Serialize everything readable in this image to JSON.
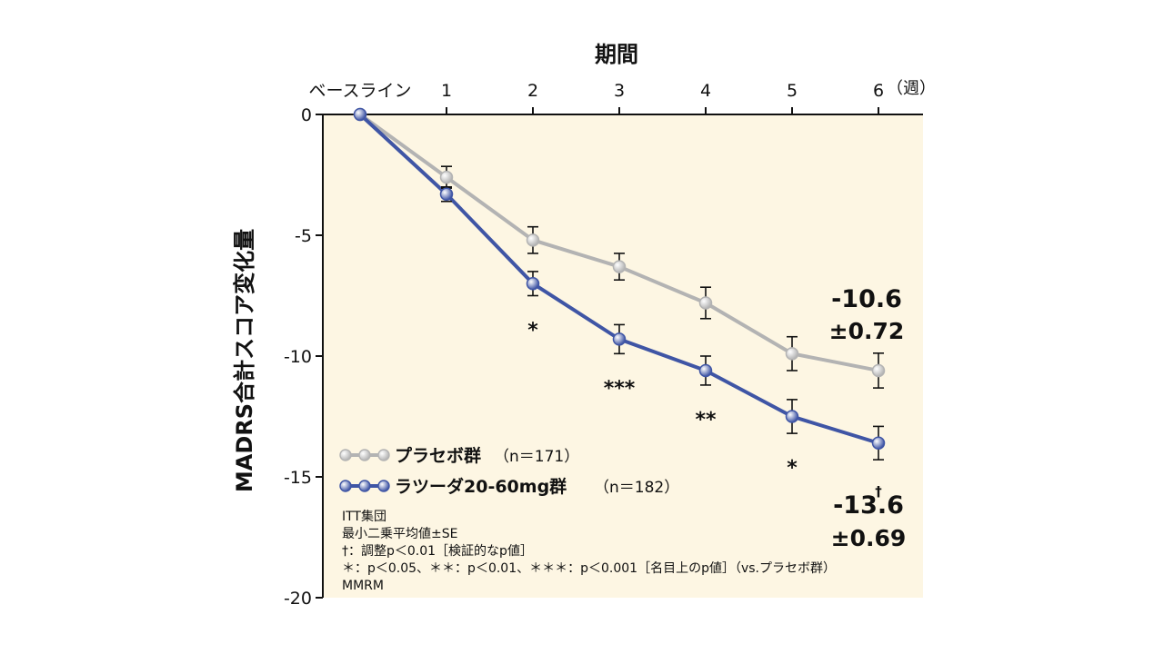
{
  "chart_data": {
    "type": "line",
    "title": "期間",
    "xlabel": "期間",
    "ylabel": "MADRS合計スコア変化量",
    "x_unit": "（週）",
    "categories": [
      "ベースライン",
      "1",
      "2",
      "3",
      "4",
      "5",
      "6"
    ],
    "ylim": [
      -20,
      0
    ],
    "yticks": [
      0,
      -5,
      -10,
      -15,
      -20
    ],
    "ytick_labels": [
      "0",
      "-5",
      "-10",
      "-15",
      "-20"
    ],
    "series": [
      {
        "name": "プラセボ群",
        "n_label": "（n＝171）",
        "color": "#b3b3b3",
        "values": [
          0,
          -2.6,
          -5.2,
          -6.3,
          -7.8,
          -9.9,
          -10.6
        ],
        "errors": [
          0,
          0.45,
          0.55,
          0.55,
          0.65,
          0.7,
          0.72
        ],
        "final_value_label": "-10.6",
        "final_se_label": "±0.72"
      },
      {
        "name": "ラツーダ20-60mg群",
        "n_label": "（n＝182）",
        "color": "#3f55a5",
        "values": [
          0,
          -3.3,
          -7.0,
          -9.3,
          -10.6,
          -12.5,
          -13.6
        ],
        "errors": [
          0,
          0.3,
          0.5,
          0.6,
          0.6,
          0.7,
          0.69
        ],
        "significance": [
          "",
          "",
          "*",
          "***",
          "**",
          "*",
          "†"
        ],
        "final_value_label": "-13.6",
        "final_se_label": "±0.69"
      }
    ],
    "notes": [
      "ITT集団",
      "最小二乗平均値±SE",
      "†：調整p＜0.01［検証的なp値］",
      "＊：p＜0.05、＊＊：p＜0.01、＊＊＊：p＜0.001［名目上のp値］（vs.プラセボ群）",
      "MMRM"
    ],
    "colors": {
      "background": "#fdf6e3",
      "axis": "#111111"
    }
  }
}
